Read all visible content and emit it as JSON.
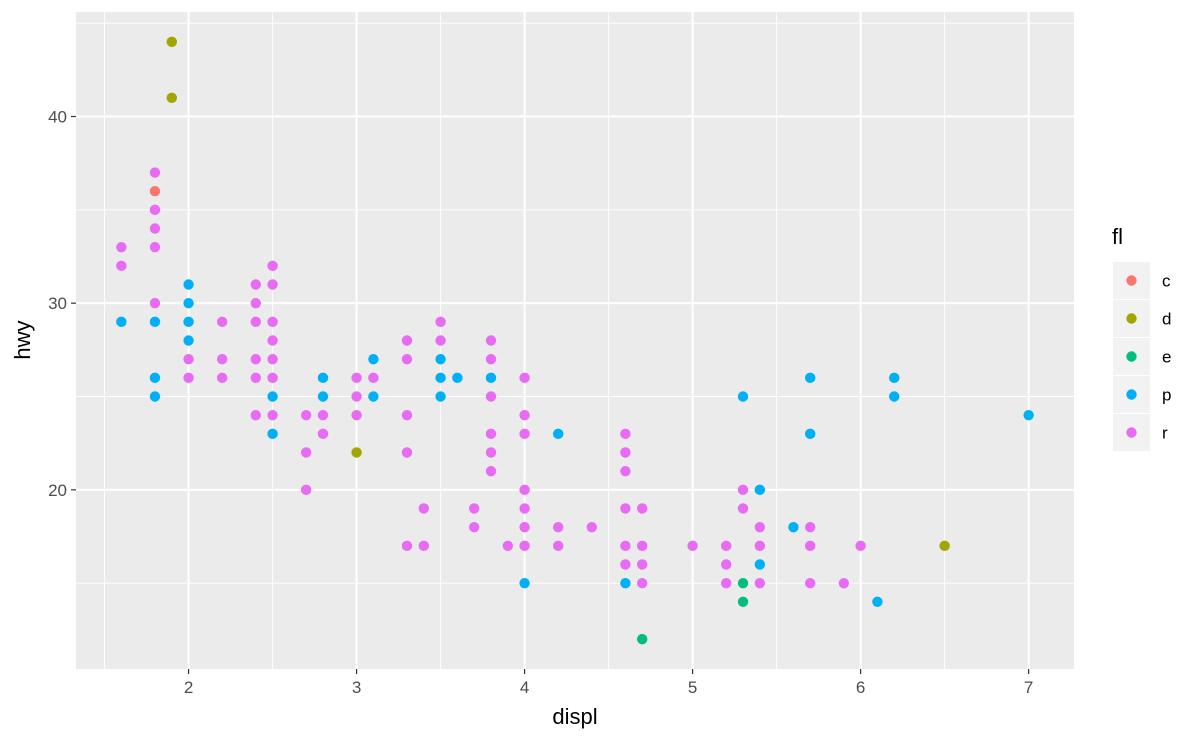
{
  "chart_data": {
    "type": "scatter",
    "title": "",
    "xlabel": "displ",
    "ylabel": "hwy",
    "xlim": [
      1.33,
      7.27
    ],
    "ylim": [
      10.4,
      45.6
    ],
    "x_ticks": [
      2,
      3,
      4,
      5,
      6,
      7
    ],
    "x_tick_labels": [
      "2",
      "3",
      "4",
      "5",
      "6",
      "7"
    ],
    "y_ticks": [
      20,
      30,
      40
    ],
    "y_tick_labels": [
      "20",
      "30",
      "40"
    ],
    "grid": true,
    "background": "#ebebeb",
    "legend": {
      "title": "fl",
      "placement": "right",
      "entries": [
        {
          "label": "c",
          "color": "#F8766D"
        },
        {
          "label": "d",
          "color": "#A3A500"
        },
        {
          "label": "e",
          "color": "#00BF7D"
        },
        {
          "label": "p",
          "color": "#00B0F6"
        },
        {
          "label": "r",
          "color": "#E76BF3"
        }
      ]
    },
    "series": [
      {
        "name": "c",
        "color": "#F8766D",
        "points": [
          [
            1.8,
            36
          ]
        ]
      },
      {
        "name": "d",
        "color": "#A3A500",
        "points": [
          [
            1.9,
            44
          ],
          [
            1.9,
            41
          ],
          [
            3.0,
            22
          ],
          [
            6.5,
            17
          ]
        ]
      },
      {
        "name": "e",
        "color": "#00BF7D",
        "points": [
          [
            4.7,
            12
          ],
          [
            5.3,
            15
          ],
          [
            5.3,
            14
          ]
        ]
      },
      {
        "name": "p",
        "color": "#00B0F6",
        "points": [
          [
            1.6,
            29
          ],
          [
            1.8,
            29
          ],
          [
            1.8,
            26
          ],
          [
            1.8,
            25
          ],
          [
            2.0,
            31
          ],
          [
            2.0,
            30
          ],
          [
            2.0,
            29
          ],
          [
            2.0,
            28
          ],
          [
            2.5,
            25
          ],
          [
            2.5,
            23
          ],
          [
            2.8,
            26
          ],
          [
            2.8,
            25
          ],
          [
            3.1,
            27
          ],
          [
            3.1,
            25
          ],
          [
            3.5,
            27
          ],
          [
            3.5,
            26
          ],
          [
            3.5,
            25
          ],
          [
            3.6,
            26
          ],
          [
            3.8,
            26
          ],
          [
            4.0,
            15
          ],
          [
            4.2,
            23
          ],
          [
            4.6,
            15
          ],
          [
            5.3,
            25
          ],
          [
            5.4,
            20
          ],
          [
            5.4,
            16
          ],
          [
            5.6,
            18
          ],
          [
            5.7,
            26
          ],
          [
            5.7,
            23
          ],
          [
            6.1,
            14
          ],
          [
            6.2,
            26
          ],
          [
            6.2,
            25
          ],
          [
            7.0,
            24
          ]
        ]
      },
      {
        "name": "r",
        "color": "#E76BF3",
        "points": [
          [
            1.6,
            33
          ],
          [
            1.6,
            32
          ],
          [
            1.8,
            37
          ],
          [
            1.8,
            35
          ],
          [
            1.8,
            34
          ],
          [
            1.8,
            33
          ],
          [
            1.8,
            30
          ],
          [
            2.0,
            27
          ],
          [
            2.0,
            26
          ],
          [
            2.2,
            29
          ],
          [
            2.2,
            27
          ],
          [
            2.2,
            26
          ],
          [
            2.4,
            31
          ],
          [
            2.4,
            30
          ],
          [
            2.4,
            29
          ],
          [
            2.4,
            27
          ],
          [
            2.4,
            26
          ],
          [
            2.4,
            24
          ],
          [
            2.5,
            32
          ],
          [
            2.5,
            31
          ],
          [
            2.5,
            29
          ],
          [
            2.5,
            28
          ],
          [
            2.5,
            27
          ],
          [
            2.5,
            26
          ],
          [
            2.5,
            24
          ],
          [
            2.7,
            24
          ],
          [
            2.7,
            22
          ],
          [
            2.7,
            20
          ],
          [
            2.8,
            24
          ],
          [
            2.8,
            23
          ],
          [
            3.0,
            26
          ],
          [
            3.0,
            25
          ],
          [
            3.0,
            24
          ],
          [
            3.1,
            26
          ],
          [
            3.3,
            28
          ],
          [
            3.3,
            27
          ],
          [
            3.3,
            24
          ],
          [
            3.3,
            22
          ],
          [
            3.3,
            17
          ],
          [
            3.4,
            19
          ],
          [
            3.4,
            17
          ],
          [
            3.5,
            29
          ],
          [
            3.5,
            28
          ],
          [
            3.7,
            19
          ],
          [
            3.7,
            18
          ],
          [
            3.8,
            28
          ],
          [
            3.8,
            27
          ],
          [
            3.8,
            25
          ],
          [
            3.8,
            23
          ],
          [
            3.8,
            22
          ],
          [
            3.8,
            21
          ],
          [
            3.9,
            17
          ],
          [
            4.0,
            26
          ],
          [
            4.0,
            24
          ],
          [
            4.0,
            23
          ],
          [
            4.0,
            20
          ],
          [
            4.0,
            19
          ],
          [
            4.0,
            18
          ],
          [
            4.0,
            17
          ],
          [
            4.2,
            18
          ],
          [
            4.2,
            17
          ],
          [
            4.4,
            18
          ],
          [
            4.6,
            23
          ],
          [
            4.6,
            22
          ],
          [
            4.6,
            21
          ],
          [
            4.6,
            19
          ],
          [
            4.6,
            17
          ],
          [
            4.6,
            16
          ],
          [
            4.7,
            19
          ],
          [
            4.7,
            17
          ],
          [
            4.7,
            16
          ],
          [
            4.7,
            15
          ],
          [
            5.0,
            17
          ],
          [
            5.2,
            17
          ],
          [
            5.2,
            16
          ],
          [
            5.2,
            15
          ],
          [
            5.3,
            20
          ],
          [
            5.3,
            19
          ],
          [
            5.4,
            18
          ],
          [
            5.4,
            17
          ],
          [
            5.4,
            15
          ],
          [
            5.7,
            18
          ],
          [
            5.7,
            17
          ],
          [
            5.7,
            15
          ],
          [
            5.9,
            15
          ],
          [
            6.0,
            17
          ]
        ]
      }
    ]
  }
}
